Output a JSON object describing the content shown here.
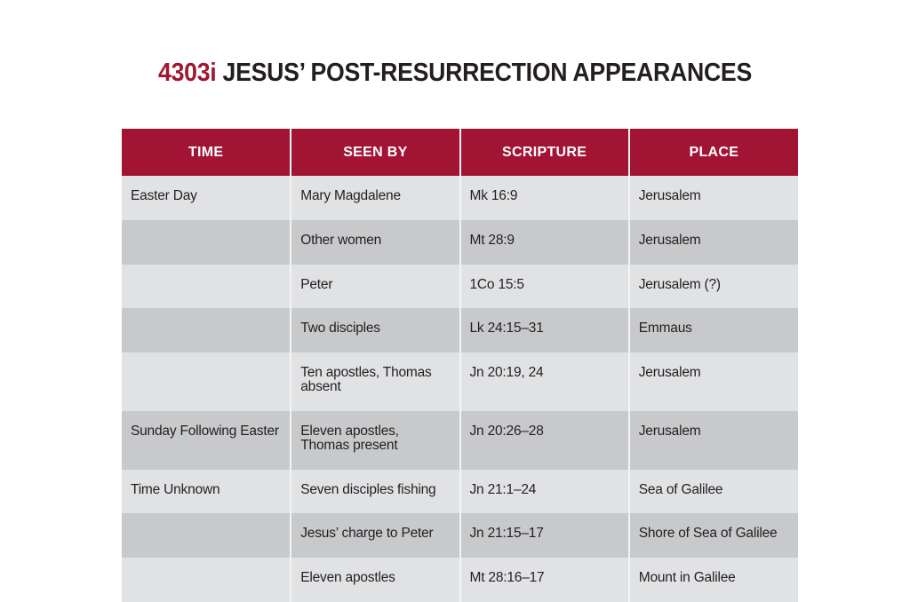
{
  "title": {
    "number": "4303i",
    "text": " JESUS’ POST-RESURRECTION APPEARANCES",
    "number_color": "#a0182f"
  },
  "table": {
    "header_color": "#a11434",
    "columns": [
      "TIME",
      "SEEN BY",
      "SCRIPTURE",
      "PLACE"
    ],
    "rows": [
      {
        "time": "Easter Day",
        "seen_by": "Mary Magdalene",
        "scripture": "Mk 16:9",
        "place": "Jerusalem"
      },
      {
        "time": "",
        "seen_by": "Other women",
        "scripture": "Mt 28:9",
        "place": "Jerusalem"
      },
      {
        "time": "",
        "seen_by": "Peter",
        "scripture": "1Co 15:5",
        "place": "Jerusalem (?)"
      },
      {
        "time": "",
        "seen_by": "Two disciples",
        "scripture": "Lk 24:15–31",
        "place": "Emmaus"
      },
      {
        "time": "",
        "seen_by": "Ten apostles, Thomas absent",
        "scripture": "Jn 20:19, 24",
        "place": "Jerusalem"
      },
      {
        "time": "Sunday Following Easter",
        "seen_by": "Eleven apostles, Thomas present",
        "scripture": "Jn 20:26–28",
        "place": "Jerusalem"
      },
      {
        "time": "Time Unknown",
        "seen_by": "Seven disciples fishing",
        "scripture": "Jn 21:1–24",
        "place": "Sea of Galilee"
      },
      {
        "time": "",
        "seen_by": "Jesus’ charge to Peter",
        "scripture": "Jn 21:15–17",
        "place": "Shore of Sea of Galilee"
      },
      {
        "time": "",
        "seen_by": "Eleven apostles",
        "scripture": "Mt 28:16–17",
        "place": "Mount in Galilee"
      }
    ]
  }
}
